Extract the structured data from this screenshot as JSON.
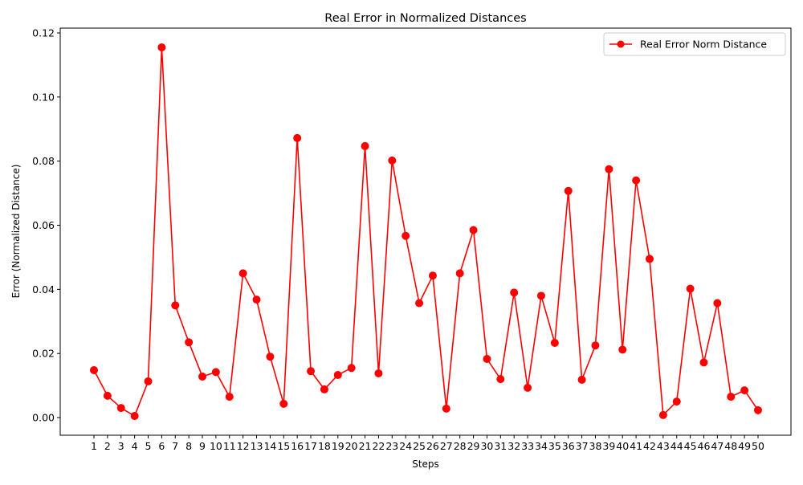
{
  "chart_data": {
    "type": "line",
    "title": "Real Error in Normalized Distances",
    "xlabel": "Steps",
    "ylabel": "Error (Normalized Distance)",
    "categories": [
      "1",
      "2",
      "3",
      "4",
      "5",
      "6",
      "7",
      "8",
      "9",
      "10",
      "11",
      "12",
      "13",
      "14",
      "15",
      "16",
      "17",
      "18",
      "19",
      "20",
      "21",
      "22",
      "23",
      "24",
      "25",
      "26",
      "27",
      "28",
      "29",
      "30",
      "31",
      "32",
      "33",
      "34",
      "35",
      "36",
      "37",
      "38",
      "39",
      "40",
      "41",
      "42",
      "43",
      "44",
      "45",
      "46",
      "47",
      "48",
      "49",
      "50"
    ],
    "ylim": [
      -0.0055,
      0.1215
    ],
    "yticks": [
      "0.00",
      "0.02",
      "0.04",
      "0.06",
      "0.08",
      "0.10",
      "0.12"
    ],
    "ytick_values": [
      0,
      0.02,
      0.04,
      0.06,
      0.08,
      0.1,
      0.12
    ],
    "grid": false,
    "legend_position": "top-right",
    "series": [
      {
        "name": "Real Error Norm Distance",
        "color": "#ff0000",
        "marker": "circle",
        "values": [
          0.0148,
          0.0068,
          0.003,
          0.0005,
          0.0113,
          0.1155,
          0.035,
          0.0235,
          0.0128,
          0.0142,
          0.0065,
          0.045,
          0.0368,
          0.019,
          0.0043,
          0.0872,
          0.0145,
          0.0088,
          0.0133,
          0.0155,
          0.0847,
          0.0138,
          0.0802,
          0.0567,
          0.0357,
          0.0443,
          0.0028,
          0.045,
          0.0585,
          0.0183,
          0.012,
          0.039,
          0.0093,
          0.038,
          0.0233,
          0.0707,
          0.0118,
          0.0225,
          0.0775,
          0.0212,
          0.074,
          0.0495,
          0.0008,
          0.005,
          0.0402,
          0.0172,
          0.0357,
          0.0065,
          0.0085,
          0.0023
        ]
      }
    ]
  }
}
